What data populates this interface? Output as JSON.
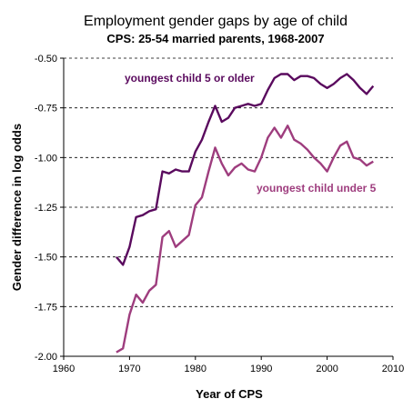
{
  "chart_data": {
    "type": "line",
    "title": "Employment gender gaps by age of child",
    "subtitle": "CPS: 25-54 married parents, 1968-2007",
    "xlabel": "Year of CPS",
    "ylabel": "Gender difference in log odds",
    "xlim": [
      1960,
      2010
    ],
    "ylim": [
      -2.0,
      -0.5
    ],
    "xticks": [
      1960,
      1970,
      1980,
      1990,
      2000,
      2010
    ],
    "yticks": [
      "-0.50",
      "-0.75",
      "-1.00",
      "-1.25",
      "-1.50",
      "-1.75",
      "-2.00"
    ],
    "grid": "horizontal dashed",
    "series": [
      {
        "name": "youngest child 5 or older",
        "color": "#5a0a5e",
        "x": [
          1968,
          1969,
          1970,
          1971,
          1972,
          1973,
          1974,
          1975,
          1976,
          1977,
          1978,
          1979,
          1980,
          1981,
          1982,
          1983,
          1984,
          1985,
          1986,
          1987,
          1988,
          1989,
          1990,
          1991,
          1992,
          1993,
          1994,
          1995,
          1996,
          1997,
          1998,
          1999,
          2000,
          2001,
          2002,
          2003,
          2004,
          2005,
          2006,
          2007
        ],
        "y": [
          -1.5,
          -1.54,
          -1.45,
          -1.3,
          -1.29,
          -1.27,
          -1.26,
          -1.07,
          -1.08,
          -1.06,
          -1.07,
          -1.07,
          -0.97,
          -0.91,
          -0.82,
          -0.74,
          -0.82,
          -0.8,
          -0.75,
          -0.74,
          -0.73,
          -0.74,
          -0.73,
          -0.66,
          -0.6,
          -0.58,
          -0.58,
          -0.61,
          -0.59,
          -0.59,
          -0.6,
          -0.63,
          -0.65,
          -0.63,
          -0.6,
          -0.58,
          -0.61,
          -0.65,
          -0.68,
          -0.64
        ]
      },
      {
        "name": "youngest child under 5",
        "color": "#9e3d7e",
        "x": [
          1968,
          1969,
          1970,
          1971,
          1972,
          1973,
          1974,
          1975,
          1976,
          1977,
          1978,
          1979,
          1980,
          1981,
          1982,
          1983,
          1984,
          1985,
          1986,
          1987,
          1988,
          1989,
          1990,
          1991,
          1992,
          1993,
          1994,
          1995,
          1996,
          1997,
          1998,
          1999,
          2000,
          2001,
          2002,
          2003,
          2004,
          2005,
          2006,
          2007
        ],
        "y": [
          -1.98,
          -1.96,
          -1.79,
          -1.69,
          -1.73,
          -1.67,
          -1.64,
          -1.4,
          -1.37,
          -1.45,
          -1.42,
          -1.39,
          -1.24,
          -1.2,
          -1.07,
          -0.95,
          -1.03,
          -1.09,
          -1.05,
          -1.03,
          -1.06,
          -1.07,
          -1.0,
          -0.9,
          -0.85,
          -0.9,
          -0.84,
          -0.91,
          -0.93,
          -0.96,
          -1.0,
          -1.03,
          -1.07,
          -1.0,
          -0.94,
          -0.92,
          -1.0,
          -1.01,
          -1.04,
          -1.02
        ]
      }
    ]
  }
}
